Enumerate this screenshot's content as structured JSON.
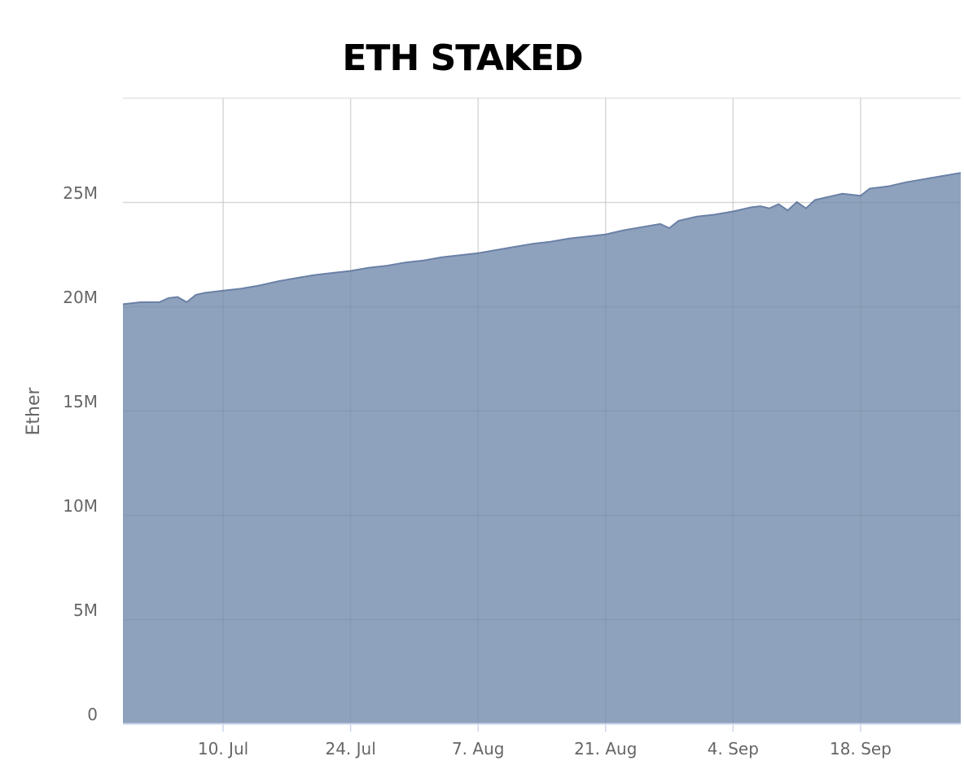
{
  "chart_data": {
    "type": "area",
    "title": "ETH STAKED",
    "xlabel": "",
    "ylabel": "Ether",
    "x_tick_labels": [
      "10. Jul",
      "24. Jul",
      "7. Aug",
      "21. Aug",
      "4. Sep",
      "18. Sep"
    ],
    "x_tick_dates": [
      "2023-07-10",
      "2023-07-24",
      "2023-08-07",
      "2023-08-21",
      "2023-09-04",
      "2023-09-18"
    ],
    "xlim": [
      "2023-06-29",
      "2023-09-29"
    ],
    "y_tick_labels": [
      "0",
      "5M",
      "10M",
      "15M",
      "20M",
      "25M"
    ],
    "y_tick_values": [
      0,
      5000000,
      10000000,
      15000000,
      20000000,
      25000000
    ],
    "ylim": [
      0,
      30000000
    ],
    "grid": true,
    "fill_color": "#8fa2bd",
    "line_color": "#6a80a6",
    "series": [
      {
        "x": [
          "2023-06-29",
          "2023-07-01",
          "2023-07-03",
          "2023-07-04",
          "2023-07-05",
          "2023-07-06",
          "2023-07-07",
          "2023-07-08",
          "2023-07-10",
          "2023-07-12",
          "2023-07-14",
          "2023-07-16",
          "2023-07-18",
          "2023-07-20",
          "2023-07-22",
          "2023-07-24",
          "2023-07-26",
          "2023-07-28",
          "2023-07-30",
          "2023-08-01",
          "2023-08-03",
          "2023-08-05",
          "2023-08-07",
          "2023-08-09",
          "2023-08-11",
          "2023-08-13",
          "2023-08-15",
          "2023-08-17",
          "2023-08-19",
          "2023-08-21",
          "2023-08-23",
          "2023-08-25",
          "2023-08-27",
          "2023-08-28",
          "2023-08-29",
          "2023-08-31",
          "2023-09-02",
          "2023-09-04",
          "2023-09-06",
          "2023-09-07",
          "2023-09-08",
          "2023-09-09",
          "2023-09-10",
          "2023-09-11",
          "2023-09-12",
          "2023-09-13",
          "2023-09-14",
          "2023-09-16",
          "2023-09-18",
          "2023-09-19",
          "2023-09-21",
          "2023-09-23",
          "2023-09-25",
          "2023-09-27",
          "2023-09-29"
        ],
        "values": [
          20.1,
          20.2,
          20.2,
          20.4,
          20.45,
          20.2,
          20.55,
          20.65,
          20.75,
          20.85,
          21.0,
          21.2,
          21.35,
          21.5,
          21.6,
          21.7,
          21.85,
          21.95,
          22.1,
          22.2,
          22.35,
          22.45,
          22.55,
          22.7,
          22.85,
          23.0,
          23.1,
          23.25,
          23.35,
          23.45,
          23.65,
          23.8,
          23.95,
          23.75,
          24.1,
          24.3,
          24.4,
          24.55,
          24.75,
          24.8,
          24.7,
          24.9,
          24.6,
          25.0,
          24.7,
          25.1,
          25.2,
          25.4,
          25.3,
          25.65,
          25.75,
          25.95,
          26.1,
          26.25,
          26.4
        ],
        "value_unit": "M"
      }
    ]
  }
}
